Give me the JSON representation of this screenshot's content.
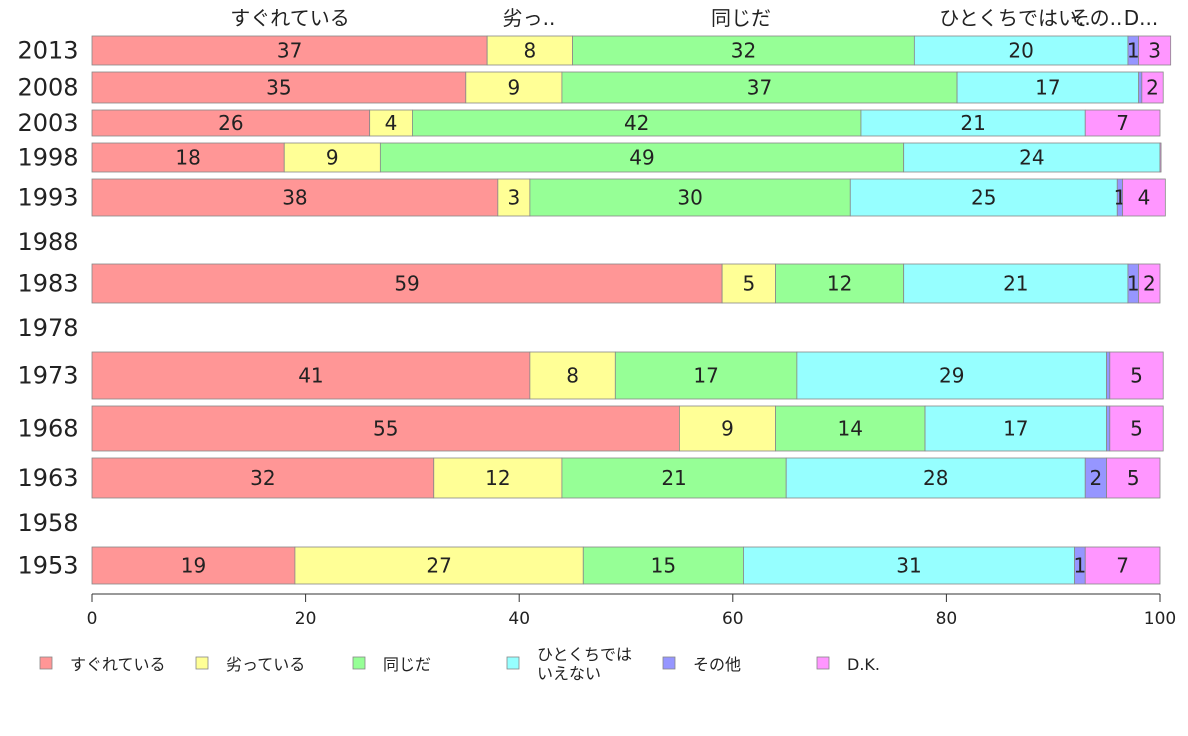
{
  "chart_data": {
    "type": "bar",
    "orientation": "horizontal",
    "stacked": true,
    "title": "",
    "xlabel": "",
    "ylabel": "",
    "xlim": [
      0,
      100
    ],
    "x_ticks": [
      "0",
      "20",
      "40",
      "60",
      "80",
      "100"
    ],
    "grid": false,
    "legend_position": "bottom",
    "categories": [
      "2013",
      "2008",
      "2003",
      "1998",
      "1993",
      "1988",
      "1983",
      "1978",
      "1973",
      "1968",
      "1963",
      "1958",
      "1953"
    ],
    "column_headers": [
      "すぐれている",
      "劣っ..",
      "同じだ",
      "ひとくちではい..",
      "その..",
      "D..."
    ],
    "series": [
      {
        "name": "すぐれている",
        "color": "#ff9696",
        "values": [
          37,
          35,
          26,
          18,
          38,
          null,
          59,
          null,
          41,
          55,
          32,
          null,
          19
        ]
      },
      {
        "name": "劣っている",
        "color": "#ffff96",
        "values": [
          8,
          9,
          4,
          9,
          3,
          null,
          5,
          null,
          8,
          9,
          12,
          null,
          27
        ]
      },
      {
        "name": "同じだ",
        "color": "#96ff96",
        "values": [
          32,
          37,
          42,
          49,
          30,
          null,
          12,
          null,
          17,
          14,
          21,
          null,
          15
        ]
      },
      {
        "name": "ひとくちではいえない",
        "color": "#96ffff",
        "values": [
          20,
          17,
          21,
          24,
          25,
          null,
          21,
          null,
          29,
          17,
          28,
          null,
          31
        ]
      },
      {
        "name": "その他",
        "color": "#9696ff",
        "values": [
          1,
          0.3,
          0,
          0,
          0.5,
          null,
          1,
          null,
          0.3,
          0.3,
          2,
          null,
          1
        ]
      },
      {
        "name": "D.K.",
        "color": "#ff96ff",
        "values": [
          3,
          2,
          7,
          0.1,
          4,
          null,
          2,
          null,
          5,
          5,
          5,
          null,
          7
        ]
      }
    ],
    "data_labels": [
      [
        "37",
        "8",
        "32",
        "20",
        "1",
        "3"
      ],
      [
        "35",
        "9",
        "37",
        "17",
        "",
        "2"
      ],
      [
        "26",
        "4",
        "42",
        "21",
        "",
        "7"
      ],
      [
        "18",
        "9",
        "49",
        "24",
        "",
        ""
      ],
      [
        "38",
        "3",
        "30",
        "25",
        "1",
        "4"
      ],
      [],
      [
        "59",
        "5",
        "12",
        "21",
        "1",
        "2"
      ],
      [],
      [
        "41",
        "8",
        "17",
        "29",
        "",
        "5"
      ],
      [
        "55",
        "9",
        "14",
        "17",
        "",
        "5"
      ],
      [
        "32",
        "12",
        "21",
        "28",
        "2",
        "5"
      ],
      [],
      [
        "19",
        "27",
        "15",
        "31",
        "1",
        "7"
      ]
    ],
    "legend_labels": [
      "すぐれている",
      "劣っている",
      "同じだ",
      "ひとくちでは\nいえない",
      "その他",
      "D.K."
    ]
  }
}
